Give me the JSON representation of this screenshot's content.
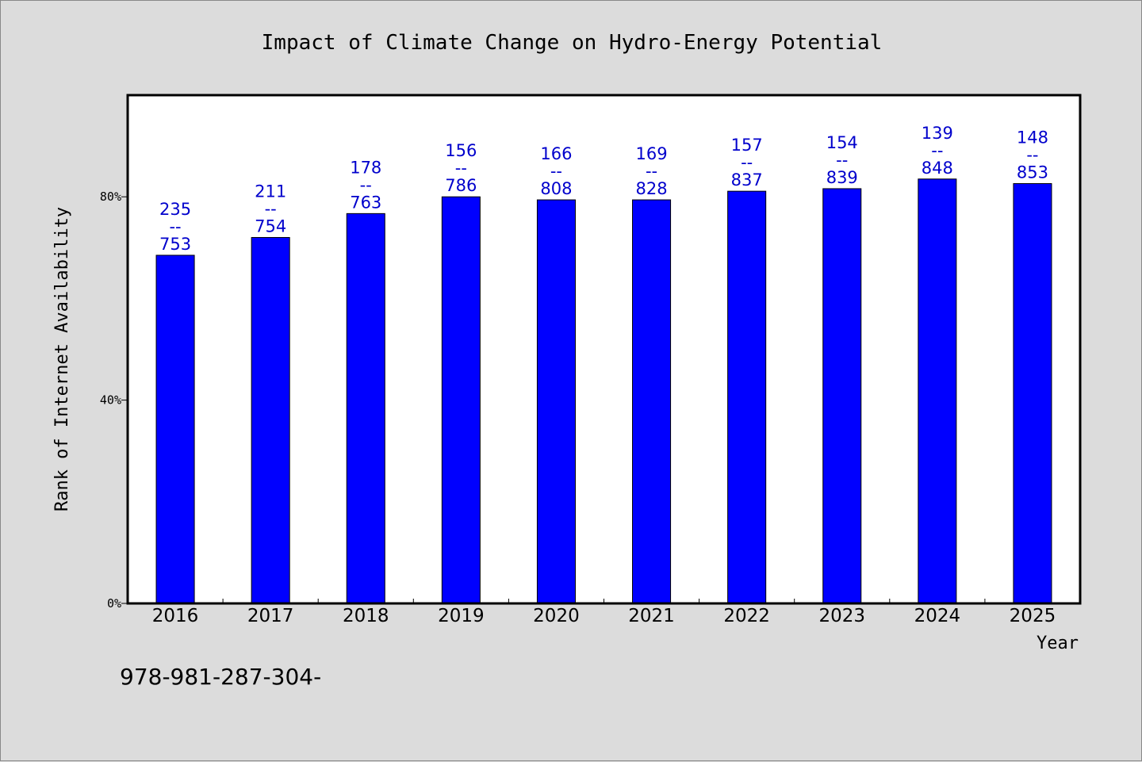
{
  "chart_data": {
    "type": "bar",
    "title": "Impact of Climate Change on Hydro-Energy Potential",
    "xlabel": "Year",
    "ylabel": "Rank of Internet Availability",
    "categories": [
      "2016",
      "2017",
      "2018",
      "2019",
      "2020",
      "2021",
      "2022",
      "2023",
      "2024",
      "2025"
    ],
    "values": [
      68.5,
      72,
      76.7,
      80,
      79.4,
      79.4,
      81.1,
      81.6,
      83.5,
      82.6
    ],
    "value_unit": "%",
    "ylim": [
      0,
      100
    ],
    "yticks": [
      {
        "value": 0,
        "label": "0%"
      },
      {
        "value": 40,
        "label": "40%"
      },
      {
        "value": 80,
        "label": "80%"
      }
    ],
    "data_labels": [
      {
        "top": "235",
        "sep": "--",
        "bottom": "753"
      },
      {
        "top": "211",
        "sep": "--",
        "bottom": "754"
      },
      {
        "top": "178",
        "sep": "--",
        "bottom": "763"
      },
      {
        "top": "156",
        "sep": "--",
        "bottom": "786"
      },
      {
        "top": "166",
        "sep": "--",
        "bottom": "808"
      },
      {
        "top": "169",
        "sep": "--",
        "bottom": "828"
      },
      {
        "top": "157",
        "sep": "--",
        "bottom": "837"
      },
      {
        "top": "154",
        "sep": "--",
        "bottom": "839"
      },
      {
        "top": "139",
        "sep": "--",
        "bottom": "848"
      },
      {
        "top": "148",
        "sep": "--",
        "bottom": "853"
      }
    ],
    "grid": false,
    "bar_color": "#0000ff",
    "label_color": "#0000cc"
  },
  "footnote": "978-981-287-304-"
}
